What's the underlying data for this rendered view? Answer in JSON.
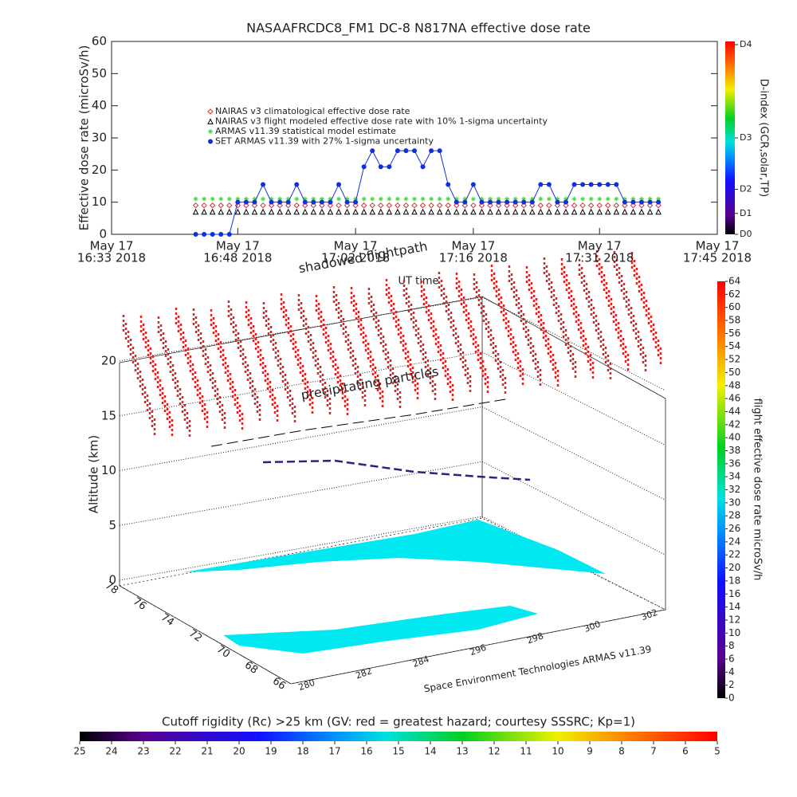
{
  "chart_data": [
    {
      "type": "line",
      "title": "NASAAFRCDC8_FM1 DC-8    N817NA effective dose rate",
      "ylabel": "Effective dose rate (microSv/h)",
      "xlabel": "UT time",
      "xlim": [
        "16:33",
        "17:45"
      ],
      "xticks": [
        {
          "value": "16:33",
          "label": [
            "May 17",
            "16:33 2018"
          ]
        },
        {
          "value": "16:48",
          "label": [
            "May 17",
            "16:48 2018"
          ]
        },
        {
          "value": "17:02",
          "label": [
            "May 17",
            "17:02 2018"
          ]
        },
        {
          "value": "17:16",
          "label": [
            "May 17",
            "17:16 2018"
          ]
        },
        {
          "value": "17:31",
          "label": [
            "May 17",
            "17:31 2018"
          ]
        },
        {
          "value": "17:45",
          "label": [
            "May 17",
            "17:45 2018"
          ]
        }
      ],
      "ylim": [
        0,
        60
      ],
      "yticks": [
        0,
        10,
        20,
        30,
        40,
        50,
        60
      ],
      "y2label": "D-index (GCR,solar,TP)",
      "y2lim": [
        0,
        60
      ],
      "y2ticks": [
        {
          "value": 0,
          "label": "D0"
        },
        {
          "value": 6.5,
          "label": "D1"
        },
        {
          "value": 14,
          "label": "D2"
        },
        {
          "value": 30,
          "label": "D3"
        },
        {
          "value": 59,
          "label": "D4"
        }
      ],
      "x": [
        "16:43",
        "16:44",
        "16:45",
        "16:46",
        "16:47",
        "16:48",
        "16:49",
        "16:50",
        "16:51",
        "16:52",
        "16:53",
        "16:54",
        "16:55",
        "16:56",
        "16:57",
        "16:58",
        "16:59",
        "17:00",
        "17:01",
        "17:02",
        "17:03",
        "17:04",
        "17:05",
        "17:06",
        "17:07",
        "17:08",
        "17:09",
        "17:10",
        "17:11",
        "17:12",
        "17:13",
        "17:14",
        "17:15",
        "17:16",
        "17:17",
        "17:18",
        "17:19",
        "17:20",
        "17:21",
        "17:22",
        "17:23",
        "17:24",
        "17:25",
        "17:26",
        "17:27",
        "17:28",
        "17:29",
        "17:30",
        "17:31",
        "17:32",
        "17:33",
        "17:34",
        "17:35",
        "17:36",
        "17:37",
        "17:38"
      ],
      "series": [
        {
          "name": "NAIRAS v3 climatological effective dose rate",
          "color": "#d03030",
          "marker": "diamond",
          "values": [
            9,
            9,
            9,
            9,
            9,
            9,
            9,
            9,
            9,
            9,
            9,
            9,
            9,
            9,
            9,
            9,
            9,
            9,
            9,
            9,
            9,
            9,
            9,
            9,
            9,
            9,
            9,
            9,
            9,
            9,
            9,
            9,
            9,
            9,
            9,
            9,
            9,
            9,
            9,
            9,
            9,
            9,
            9,
            9,
            9,
            9,
            9,
            9,
            9,
            9,
            9,
            9,
            9,
            9,
            9,
            9
          ]
        },
        {
          "name": "NAIRAS v3 flight modeled effective dose rate with 10% 1-sigma uncertainty",
          "color": "#000000",
          "marker": "triangle",
          "values": [
            7,
            7,
            7,
            7,
            7,
            7,
            7,
            7,
            7,
            7,
            7,
            7,
            7,
            7,
            7,
            7,
            7,
            7,
            7,
            7,
            7,
            7,
            7,
            7,
            7,
            7,
            7,
            7,
            7,
            7,
            7,
            7,
            7,
            7,
            7,
            7,
            7,
            7,
            7,
            7,
            7,
            7,
            7,
            7,
            7,
            7,
            7,
            7,
            7,
            7,
            7,
            7,
            7,
            7,
            7,
            7
          ]
        },
        {
          "name": "ARMAS v11.39 statistical model estimate",
          "color": "#40e040",
          "marker": "asterisk",
          "values": [
            11,
            11,
            11,
            11,
            11,
            11,
            11,
            11,
            11,
            11,
            11,
            11,
            11,
            11,
            11,
            11,
            11,
            11,
            11,
            11,
            11,
            11,
            11,
            11,
            11,
            11,
            11,
            11,
            11,
            11,
            11,
            11,
            11,
            11,
            11,
            11,
            11,
            11,
            11,
            11,
            11,
            11,
            11,
            11,
            11,
            11,
            11,
            11,
            11,
            11,
            11,
            11,
            11,
            11,
            11,
            11
          ]
        },
        {
          "name": "SET ARMAS v11.39 with 27% 1-sigma uncertainty",
          "color": "#1030e0",
          "marker": "circle",
          "values": [
            0,
            0,
            0,
            0,
            0,
            10,
            10,
            10,
            15.5,
            10,
            10,
            10,
            15.5,
            10,
            10,
            10,
            10,
            15.5,
            10,
            10,
            21,
            26,
            21,
            21,
            26,
            26,
            26,
            21,
            26,
            26,
            15.5,
            10,
            10,
            15.5,
            10,
            10,
            10,
            10,
            10,
            10,
            10,
            15.5,
            15.5,
            10,
            10,
            15.5,
            15.5,
            15.5,
            15.5,
            15.5,
            15.5,
            10,
            10,
            10,
            10,
            10
          ]
        }
      ]
    },
    {
      "type": "surface3d",
      "zlabel": "Altitude (km)",
      "zticks": [
        0,
        5,
        10,
        15,
        20
      ],
      "yticks": [
        78,
        76,
        74,
        72,
        70,
        68,
        66
      ],
      "xticks": [
        280,
        282,
        284,
        296,
        298,
        300,
        302
      ],
      "annotations": [
        "shadowed flightpath",
        "precipitating particles",
        "Space Environment Technologies ARMAS v11.39"
      ]
    },
    {
      "type": "colorbar",
      "label": "flight effective dose rate microSv/h",
      "lim": [
        0,
        64
      ],
      "ticks": [
        0,
        2,
        4,
        6,
        8,
        10,
        12,
        14,
        16,
        18,
        20,
        22,
        24,
        26,
        28,
        30,
        32,
        34,
        36,
        38,
        40,
        42,
        44,
        46,
        48,
        50,
        52,
        54,
        56,
        58,
        60,
        62,
        64
      ]
    },
    {
      "type": "colorbar",
      "title": "Cutoff rigidity (Rc) >25 km (GV: red = greatest hazard; courtesy SSSRC; Kp=1)",
      "lim": [
        25,
        5
      ],
      "ticks": [
        25,
        24,
        23,
        22,
        21,
        20,
        19,
        18,
        17,
        16,
        15,
        14,
        13,
        12,
        11,
        10,
        9,
        8,
        7,
        6,
        5
      ]
    }
  ]
}
